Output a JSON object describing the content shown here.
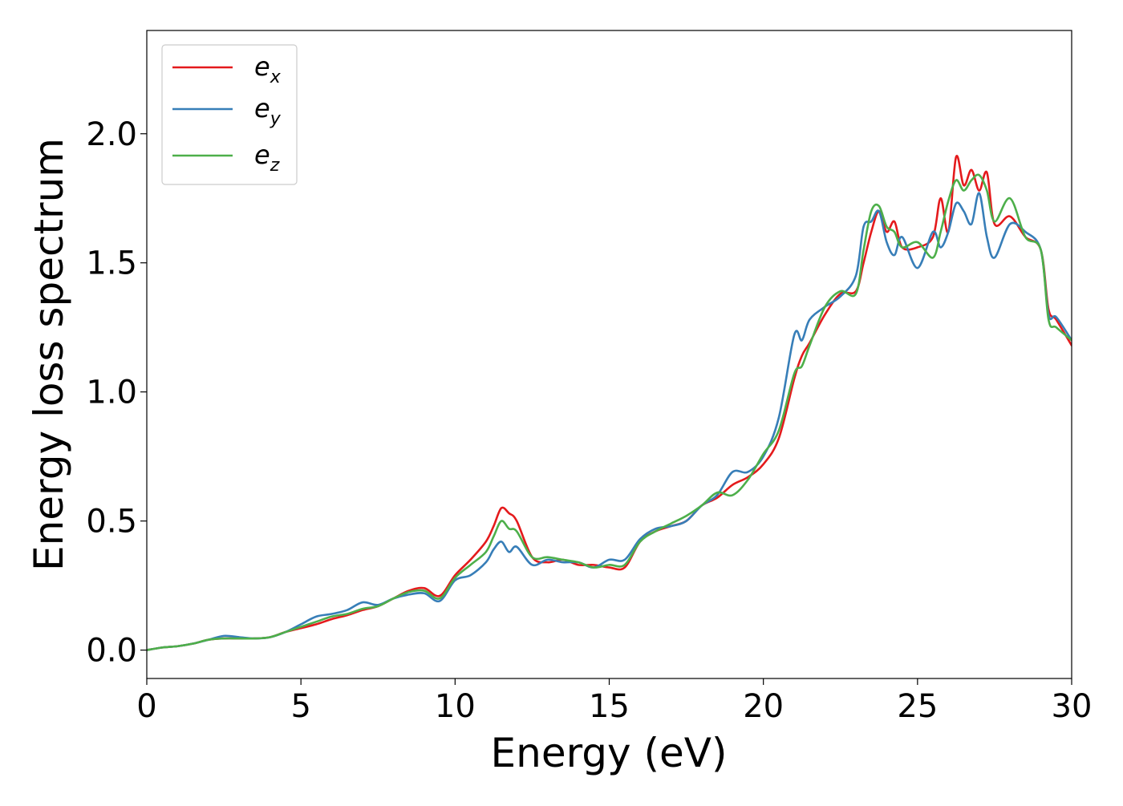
{
  "chart_data": {
    "type": "line",
    "title": "",
    "xlabel": "Energy (eV)",
    "ylabel": "Energy loss spectrum",
    "xlim": [
      0,
      30
    ],
    "ylim": [
      -0.11,
      2.4
    ],
    "xticks": [
      0,
      5,
      10,
      15,
      20,
      25,
      30
    ],
    "xtick_labels": [
      "0",
      "5",
      "10",
      "15",
      "20",
      "25",
      "30"
    ],
    "yticks": [
      0.0,
      0.5,
      1.0,
      1.5,
      2.0
    ],
    "ytick_labels": [
      "0.0",
      "0.5",
      "1.0",
      "1.5",
      "2.0"
    ],
    "grid": false,
    "legend_position": "top-left",
    "x": [
      0,
      0.5,
      1,
      1.5,
      2,
      2.5,
      3,
      3.5,
      4,
      4.5,
      5,
      5.5,
      6,
      6.5,
      7,
      7.5,
      8,
      8.5,
      9,
      9.5,
      10,
      10.5,
      11,
      11.25,
      11.5,
      11.75,
      12,
      12.5,
      13,
      13.5,
      14,
      14.5,
      15,
      15.5,
      16,
      16.5,
      17,
      17.5,
      18,
      18.5,
      19,
      19.5,
      20,
      20.5,
      21,
      21.25,
      21.5,
      22,
      22.5,
      23,
      23.25,
      23.5,
      23.75,
      24,
      24.25,
      24.5,
      25,
      25.5,
      25.75,
      26,
      26.25,
      26.5,
      26.75,
      27,
      27.25,
      27.5,
      28,
      28.5,
      29,
      29.25,
      29.5,
      30
    ],
    "series": [
      {
        "name": "e",
        "subscript": "x",
        "color": "#e41a1c",
        "values": [
          0.0,
          0.01,
          0.015,
          0.025,
          0.04,
          0.045,
          0.045,
          0.045,
          0.05,
          0.07,
          0.085,
          0.1,
          0.12,
          0.135,
          0.155,
          0.17,
          0.2,
          0.23,
          0.24,
          0.21,
          0.29,
          0.35,
          0.42,
          0.48,
          0.55,
          0.53,
          0.5,
          0.36,
          0.34,
          0.35,
          0.33,
          0.33,
          0.32,
          0.32,
          0.42,
          0.46,
          0.48,
          0.5,
          0.56,
          0.59,
          0.64,
          0.67,
          0.72,
          0.82,
          1.05,
          1.14,
          1.19,
          1.3,
          1.38,
          1.39,
          1.5,
          1.62,
          1.7,
          1.62,
          1.66,
          1.56,
          1.56,
          1.6,
          1.75,
          1.62,
          1.91,
          1.8,
          1.86,
          1.78,
          1.85,
          1.65,
          1.68,
          1.6,
          1.55,
          1.32,
          1.28,
          1.18
        ]
      },
      {
        "name": "e",
        "subscript": "y",
        "color": "#377eb8",
        "values": [
          0.0,
          0.01,
          0.015,
          0.025,
          0.04,
          0.055,
          0.05,
          0.045,
          0.05,
          0.07,
          0.1,
          0.13,
          0.14,
          0.155,
          0.185,
          0.175,
          0.2,
          0.215,
          0.22,
          0.19,
          0.27,
          0.29,
          0.34,
          0.39,
          0.42,
          0.38,
          0.4,
          0.33,
          0.35,
          0.34,
          0.34,
          0.32,
          0.35,
          0.35,
          0.43,
          0.47,
          0.48,
          0.5,
          0.56,
          0.6,
          0.69,
          0.69,
          0.75,
          0.9,
          1.22,
          1.2,
          1.28,
          1.33,
          1.37,
          1.45,
          1.64,
          1.66,
          1.7,
          1.58,
          1.53,
          1.6,
          1.48,
          1.62,
          1.56,
          1.62,
          1.73,
          1.7,
          1.65,
          1.77,
          1.6,
          1.52,
          1.65,
          1.62,
          1.55,
          1.3,
          1.29,
          1.2
        ]
      },
      {
        "name": "e",
        "subscript": "z",
        "color": "#4daf4a",
        "values": [
          0.0,
          0.01,
          0.015,
          0.025,
          0.04,
          0.045,
          0.045,
          0.045,
          0.05,
          0.07,
          0.09,
          0.11,
          0.13,
          0.14,
          0.16,
          0.17,
          0.2,
          0.225,
          0.23,
          0.2,
          0.28,
          0.33,
          0.38,
          0.44,
          0.5,
          0.47,
          0.46,
          0.36,
          0.36,
          0.35,
          0.34,
          0.32,
          0.33,
          0.33,
          0.42,
          0.46,
          0.49,
          0.52,
          0.56,
          0.61,
          0.6,
          0.66,
          0.76,
          0.85,
          1.07,
          1.1,
          1.18,
          1.33,
          1.39,
          1.38,
          1.55,
          1.7,
          1.72,
          1.64,
          1.62,
          1.56,
          1.58,
          1.52,
          1.62,
          1.74,
          1.82,
          1.78,
          1.82,
          1.84,
          1.78,
          1.66,
          1.75,
          1.6,
          1.55,
          1.28,
          1.25,
          1.2
        ]
      }
    ]
  }
}
